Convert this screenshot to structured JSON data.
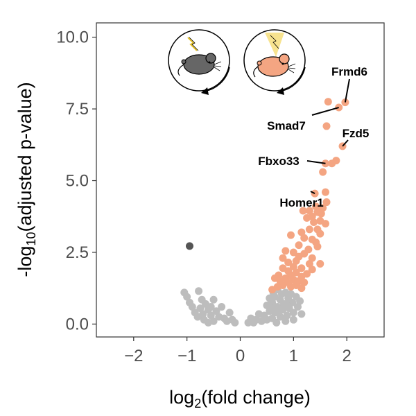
{
  "chart_data": {
    "type": "scatter",
    "xlabel": {
      "base": "log",
      "sub": "2",
      "rest": "(fold change)"
    },
    "ylabel": {
      "pre": "-log",
      "sub": "10",
      "rest": "(adjusted p-value)"
    },
    "xlim": [
      -2.7,
      2.7
    ],
    "ylim": [
      -0.45,
      10.5
    ],
    "x_ticks": [
      -2,
      -1,
      0,
      1,
      2
    ],
    "x_tick_labels": [
      "−2",
      "−1",
      "0",
      "1",
      "2"
    ],
    "y_ticks": [
      0,
      2.5,
      5,
      7.5,
      10
    ],
    "y_tick_labels": [
      "0.0",
      "2.5",
      "5.0",
      "7.5",
      "10.0"
    ],
    "grid": false,
    "colors": {
      "significant": "#f4a582",
      "down_significant": "#555555",
      "not_significant": "#bdbdbd",
      "axis": "#333333"
    },
    "icons": [
      {
        "name": "stressed-mouse-icon",
        "body_color": "#666666",
        "accent": "lightning"
      },
      {
        "name": "relaxed-mouse-icon",
        "body_color": "#f4a582",
        "accent": "light-cone",
        "cone_color": "#f7e38f"
      }
    ],
    "series": [
      {
        "points": [
          [
            -0.95,
            2.72
          ]
        ]
      },
      {
        "points": [
          [
            1.97,
            7.73
          ],
          [
            1.85,
            7.55
          ],
          [
            1.65,
            7.75
          ],
          [
            1.62,
            6.9
          ],
          [
            1.92,
            6.2
          ],
          [
            1.8,
            5.7
          ],
          [
            1.72,
            5.6
          ],
          [
            1.6,
            5.6
          ],
          [
            1.55,
            5.3
          ],
          [
            1.6,
            4.6
          ],
          [
            1.4,
            4.55
          ],
          [
            1.62,
            4.25
          ],
          [
            1.42,
            4.1
          ],
          [
            1.55,
            4.05
          ],
          [
            1.18,
            3.95
          ],
          [
            1.3,
            3.95
          ],
          [
            1.45,
            3.9
          ],
          [
            1.52,
            3.85
          ],
          [
            1.35,
            3.75
          ],
          [
            1.25,
            3.7
          ],
          [
            1.5,
            3.6
          ],
          [
            1.38,
            3.55
          ],
          [
            1.6,
            3.5
          ],
          [
            0.95,
            3.1
          ],
          [
            1.3,
            3.3
          ],
          [
            1.45,
            3.3
          ],
          [
            1.15,
            3.2
          ],
          [
            1.5,
            3.15
          ],
          [
            1.2,
            3.0
          ],
          [
            1.35,
            2.95
          ],
          [
            1.42,
            2.85
          ],
          [
            1.1,
            2.75
          ],
          [
            0.85,
            2.55
          ],
          [
            1.28,
            2.6
          ],
          [
            1.45,
            2.7
          ],
          [
            1.0,
            2.5
          ],
          [
            1.2,
            2.45
          ],
          [
            1.1,
            2.35
          ],
          [
            1.35,
            2.3
          ],
          [
            0.8,
            2.3
          ],
          [
            0.9,
            2.15
          ],
          [
            1.05,
            2.2
          ],
          [
            1.3,
            2.1
          ],
          [
            1.5,
            2.1
          ],
          [
            1.0,
            2.0
          ],
          [
            1.15,
            1.95
          ],
          [
            1.35,
            1.9
          ],
          [
            0.8,
            1.95
          ],
          [
            0.9,
            1.85
          ],
          [
            1.05,
            1.8
          ],
          [
            1.25,
            1.75
          ],
          [
            0.72,
            1.7
          ],
          [
            0.95,
            1.7
          ],
          [
            1.15,
            1.65
          ],
          [
            0.85,
            1.6
          ],
          [
            1.0,
            1.55
          ],
          [
            0.75,
            1.5
          ],
          [
            1.1,
            1.5
          ],
          [
            0.65,
            1.6
          ],
          [
            0.9,
            1.45
          ],
          [
            1.2,
            1.45
          ],
          [
            1.05,
            1.35
          ],
          [
            0.8,
            1.35
          ],
          [
            0.7,
            1.3
          ],
          [
            1.15,
            1.25
          ],
          [
            0.95,
            1.3
          ],
          [
            0.6,
            1.2
          ]
        ]
      },
      {
        "points": [
          [
            -1.05,
            1.1
          ],
          [
            -1.0,
            0.95
          ],
          [
            -0.95,
            0.75
          ],
          [
            -0.78,
            1.15
          ],
          [
            -0.72,
            0.85
          ],
          [
            -0.9,
            0.6
          ],
          [
            -0.85,
            0.4
          ],
          [
            -0.75,
            0.55
          ],
          [
            -0.8,
            0.25
          ],
          [
            -0.7,
            0.35
          ],
          [
            -0.68,
            0.15
          ],
          [
            -0.6,
            0.5
          ],
          [
            -0.65,
            0.7
          ],
          [
            -0.55,
            0.3
          ],
          [
            -0.5,
            0.85
          ],
          [
            -0.55,
            0.6
          ],
          [
            -0.5,
            0.1
          ],
          [
            -0.45,
            0.45
          ],
          [
            -0.4,
            0.25
          ],
          [
            -0.35,
            0.6
          ],
          [
            -0.3,
            0.2
          ],
          [
            -0.25,
            0.1
          ],
          [
            -0.6,
            0.05
          ],
          [
            -0.2,
            0.4
          ],
          [
            -0.15,
            0.15
          ],
          [
            -0.1,
            0.05
          ],
          [
            0.45,
            0.3
          ],
          [
            0.5,
            0.65
          ],
          [
            0.5,
            0.15
          ],
          [
            0.55,
            0.45
          ],
          [
            0.55,
            0.9
          ],
          [
            0.6,
            0.2
          ],
          [
            0.6,
            0.75
          ],
          [
            0.62,
            1.1
          ],
          [
            0.65,
            0.4
          ],
          [
            0.65,
            0.95
          ],
          [
            0.7,
            0.6
          ],
          [
            0.7,
            1.2
          ],
          [
            0.75,
            0.25
          ],
          [
            0.75,
            0.85
          ],
          [
            0.78,
            1.05
          ],
          [
            0.8,
            0.5
          ],
          [
            0.82,
            0.7
          ],
          [
            0.85,
            1.1
          ],
          [
            0.88,
            0.3
          ],
          [
            0.9,
            0.9
          ],
          [
            0.92,
            0.55
          ],
          [
            0.95,
            1.05
          ],
          [
            0.98,
            0.75
          ],
          [
            1.0,
            0.4
          ],
          [
            1.05,
            0.95
          ],
          [
            1.08,
            0.6
          ],
          [
            1.12,
            0.8
          ],
          [
            1.15,
            0.35
          ],
          [
            0.4,
            0.1
          ],
          [
            0.35,
            0.35
          ],
          [
            0.3,
            0.15
          ],
          [
            0.25,
            0.05
          ],
          [
            0.2,
            0.2
          ],
          [
            0.15,
            0.05
          ],
          [
            0.68,
            0.05
          ],
          [
            0.85,
            0.1
          ],
          [
            1.0,
            0.15
          ],
          [
            0.58,
            0.55
          ],
          [
            0.72,
            0.4
          ],
          [
            0.88,
            0.65
          ]
        ]
      }
    ],
    "annotations": [
      {
        "text": "Frmd6",
        "point": [
          1.97,
          7.73
        ]
      },
      {
        "text": "Smad7",
        "point": [
          1.85,
          7.55
        ]
      },
      {
        "text": "Fzd5",
        "point": [
          1.92,
          6.2
        ]
      },
      {
        "text": "Fbxo33",
        "point": [
          1.6,
          5.6
        ]
      },
      {
        "text": "Homer1",
        "point": [
          1.4,
          4.55
        ]
      }
    ]
  }
}
